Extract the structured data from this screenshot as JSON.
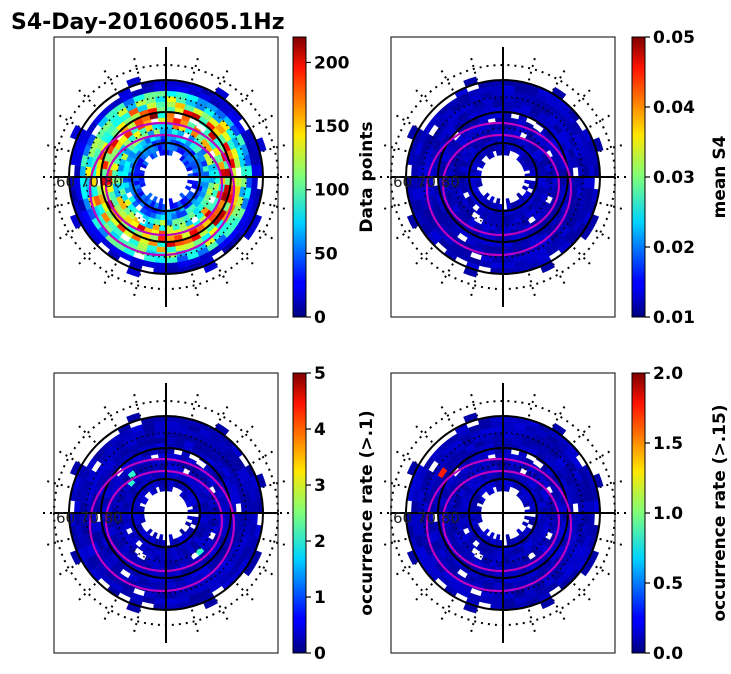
{
  "figure_title": "S4-Day-20160605.1Hz",
  "chart_data": [
    {
      "type": "heatmap",
      "projection": "polar",
      "colormap": "jet",
      "colorbar_label": "Data points",
      "clim": [
        0,
        220
      ],
      "ticks": [
        0,
        50,
        100,
        150,
        200
      ],
      "tick_labels": [
        "0",
        "50",
        "100",
        "150",
        "200"
      ],
      "lat_label": "60 70 80",
      "field": "counts"
    },
    {
      "type": "heatmap",
      "projection": "polar",
      "colormap": "jet",
      "colorbar_label": "mean S4",
      "clim": [
        0.01,
        0.05
      ],
      "ticks": [
        0.01,
        0.02,
        0.03,
        0.04,
        0.05
      ],
      "tick_labels": [
        "0.01",
        "0.02",
        "0.03",
        "0.04",
        "0.05"
      ],
      "lat_label": "60 70 80",
      "field": "low"
    },
    {
      "type": "heatmap",
      "projection": "polar",
      "colormap": "jet",
      "colorbar_label": "occurrence rate (>.1)",
      "clim": [
        0,
        5
      ],
      "ticks": [
        0,
        1,
        2,
        3,
        4,
        5
      ],
      "tick_labels": [
        "0",
        "1",
        "2",
        "3",
        "4",
        "5"
      ],
      "lat_label": "60 70 80",
      "field": "low"
    },
    {
      "type": "heatmap",
      "projection": "polar",
      "colormap": "jet",
      "colorbar_label": "occurrence rate (>.15)",
      "clim": [
        0,
        2
      ],
      "ticks": [
        0,
        0.5,
        1.0,
        1.5,
        2.0
      ],
      "tick_labels": [
        "0.0",
        "0.5",
        "1.0",
        "1.5",
        "2.0"
      ],
      "lat_label": "60 70 80",
      "field": "low"
    }
  ]
}
